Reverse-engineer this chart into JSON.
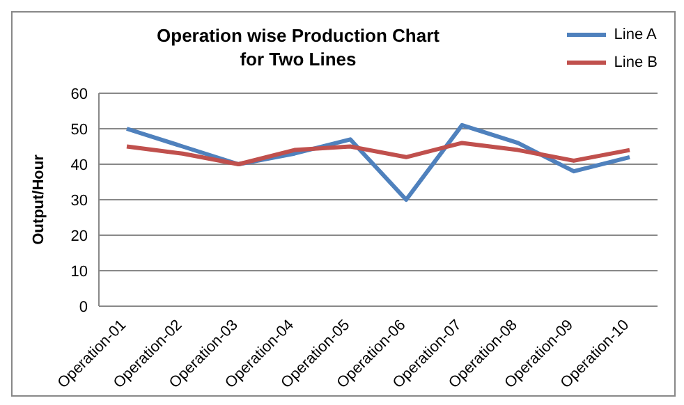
{
  "chart_data": {
    "type": "line",
    "title": "Operation wise Production Chart\nfor Two Lines",
    "ylabel": "Output/Hour",
    "categories": [
      "Operation-01",
      "Operation-02",
      "Operation-03",
      "Operation-04",
      "Operation-05",
      "Operation-06",
      "Operation-07",
      "Operation-08",
      "Operation-09",
      "Operation-10"
    ],
    "series": [
      {
        "name": "Line A",
        "color": "#4f81bd",
        "values": [
          50,
          45,
          40,
          43,
          47,
          30,
          51,
          46,
          38,
          42
        ]
      },
      {
        "name": "Line B",
        "color": "#c0504d",
        "values": [
          45,
          43,
          40,
          44,
          45,
          42,
          46,
          44,
          41,
          44
        ]
      }
    ],
    "ylim": [
      0,
      60
    ],
    "yticks": [
      0,
      10,
      20,
      30,
      40,
      50,
      60
    ],
    "grid": "y",
    "legend": "top right",
    "marker": "none"
  }
}
